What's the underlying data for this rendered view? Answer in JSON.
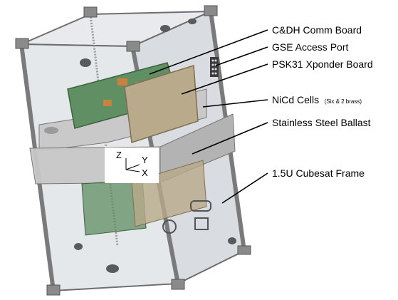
{
  "callouts": {
    "cdh": "C&DH Comm Board",
    "gse": "GSE Access Port",
    "psk": "PSK31 Xponder Board",
    "nicd": "NiCd Cells",
    "nicd_note": "(Six & 2 brass)",
    "ballast": "Stainless Steel Ballast",
    "frame": "1.5U Cubesat Frame"
  },
  "axes": {
    "z": "Z",
    "y": "Y",
    "x": "X"
  },
  "colors": {
    "frame_gray": "#9a9a9a",
    "panel_tint": "#e3e6ea",
    "board_green": "#5f8f62",
    "board_tan": "#b8aa8a",
    "ballast_gray": "#c7c7c7"
  }
}
